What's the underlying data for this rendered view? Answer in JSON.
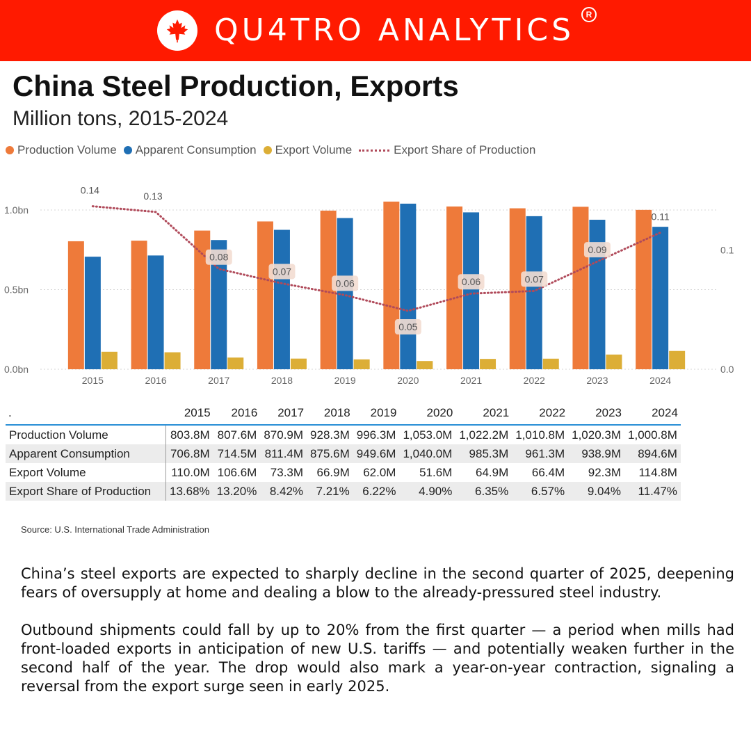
{
  "brand": {
    "name": "QU4TRO ANALYTICS",
    "registered": "R"
  },
  "header": {
    "title": "China Steel Production, Exports",
    "subtitle": "Million tons, 2015-2024"
  },
  "colors": {
    "banner": "#ff1a00",
    "production": "#ee7a3a",
    "consumption": "#1f6fb4",
    "export": "#dcae36",
    "share": "#b04a5a",
    "table_rule": "#2a8fd6"
  },
  "legend": [
    {
      "label": "Production Volume",
      "color": "#ee7a3a",
      "marker": "dot"
    },
    {
      "label": "Apparent Consumption",
      "color": "#1f6fb4",
      "marker": "dot"
    },
    {
      "label": "Export Volume",
      "color": "#dcae36",
      "marker": "dot"
    },
    {
      "label": "Export Share of Production",
      "color": "#b04a5a",
      "marker": "dotted-line"
    }
  ],
  "chart_data": {
    "type": "bar",
    "categories": [
      "2015",
      "2016",
      "2017",
      "2018",
      "2019",
      "2020",
      "2021",
      "2022",
      "2023",
      "2024"
    ],
    "series": [
      {
        "name": "Production Volume",
        "type": "bar",
        "axis": "left",
        "values": [
          803.8,
          807.6,
          870.9,
          928.3,
          996.3,
          1053.0,
          1022.2,
          1010.8,
          1020.3,
          1000.8
        ]
      },
      {
        "name": "Apparent Consumption",
        "type": "bar",
        "axis": "left",
        "values": [
          706.8,
          714.5,
          811.4,
          875.6,
          949.6,
          1040.0,
          985.3,
          961.3,
          938.9,
          894.6
        ]
      },
      {
        "name": "Export Volume",
        "type": "bar",
        "axis": "left",
        "values": [
          110.0,
          106.6,
          73.3,
          66.9,
          62.0,
          51.6,
          64.9,
          66.4,
          92.3,
          114.8
        ]
      },
      {
        "name": "Export Share of Production",
        "type": "line",
        "style": "dotted",
        "axis": "right",
        "values": [
          0.1368,
          0.132,
          0.0842,
          0.0721,
          0.0622,
          0.049,
          0.0635,
          0.0657,
          0.0904,
          0.1147
        ],
        "labels": [
          "0.14",
          "0.13",
          "0.08",
          "0.07",
          "0.06",
          "0.05",
          "0.06",
          "0.07",
          "0.09",
          "0.11"
        ]
      }
    ],
    "y_left": {
      "range": [
        0,
        1070
      ],
      "ticks": [
        0,
        500,
        1000
      ],
      "tick_labels": [
        "0.0bn",
        "0.5bn",
        "1.0bn"
      ]
    },
    "y_right": {
      "range": [
        0,
        0.143
      ],
      "ticks": [
        0,
        0.1
      ],
      "tick_labels": [
        "0.0",
        "0.1"
      ]
    },
    "grid": true
  },
  "table": {
    "corner": ".",
    "years": [
      "2015",
      "2016",
      "2017",
      "2018",
      "2019",
      "2020",
      "2021",
      "2022",
      "2023",
      "2024"
    ],
    "rows": [
      {
        "label": "Production Volume",
        "values": [
          "803.8M",
          "807.6M",
          "870.9M",
          "928.3M",
          "996.3M",
          "1,053.0M",
          "1,022.2M",
          "1,010.8M",
          "1,020.3M",
          "1,000.8M"
        ]
      },
      {
        "label": "Apparent Consumption",
        "values": [
          "706.8M",
          "714.5M",
          "811.4M",
          "875.6M",
          "949.6M",
          "1,040.0M",
          "985.3M",
          "961.3M",
          "938.9M",
          "894.6M"
        ]
      },
      {
        "label": "Export Volume",
        "values": [
          "110.0M",
          "106.6M",
          "73.3M",
          "66.9M",
          "62.0M",
          "51.6M",
          "64.9M",
          "66.4M",
          "92.3M",
          "114.8M"
        ]
      },
      {
        "label": "Export Share of Production",
        "values": [
          "13.68%",
          "13.20%",
          "8.42%",
          "7.21%",
          "6.22%",
          "4.90%",
          "6.35%",
          "6.57%",
          "9.04%",
          "11.47%"
        ]
      }
    ]
  },
  "source": "Source: U.S. International Trade Administration",
  "body": {
    "paragraphs": [
      "China’s steel exports are expected to sharply decline in the second quarter of 2025, deepening fears of oversupply at home and dealing a blow to the already-pressured steel industry.",
      "Outbound shipments could fall by up to 20% from the first quarter — a period when mills had front-loaded exports in anticipation of new U.S. tariffs — and potentially weaken further in the second half of the year. The drop would also mark a year-on-year contraction, signaling a reversal from the export surge seen in early 2025."
    ]
  }
}
